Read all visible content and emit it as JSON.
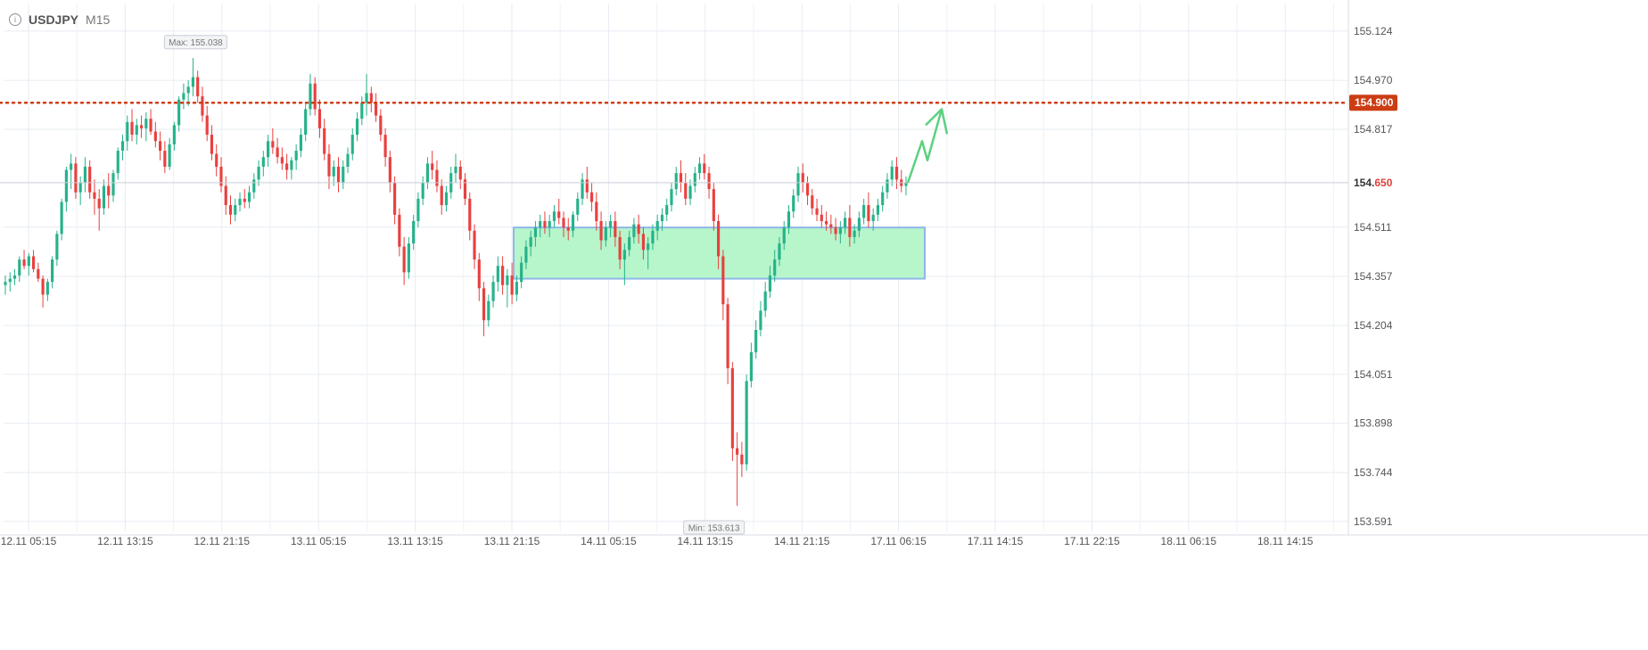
{
  "header": {
    "symbol": "USDJPY",
    "timeframe": "M15",
    "info_icon": "info-icon"
  },
  "chart_data": {
    "type": "candlestick",
    "symbol": "USDJPY",
    "timeframe": "M15",
    "y_ticks": [
      "155.124",
      "154.970",
      "154.817",
      "154.511",
      "154.357",
      "154.204",
      "154.051",
      "153.898",
      "153.744",
      "153.591"
    ],
    "ylim": [
      153.56,
      155.21
    ],
    "x_ticks": [
      "12.11 05:15",
      "12.11 13:15",
      "12.11 21:15",
      "13.11 05:15",
      "13.11 13:15",
      "13.11 21:15",
      "14.11 05:15",
      "14.11 13:15",
      "14.11 21:15",
      "17.11 06:15",
      "17.11 14:15",
      "17.11 22:15",
      "18.11 06:15",
      "18.11 14:15"
    ],
    "max_label": "Max: 155.038",
    "min_label": "Min: 153.613",
    "resistance_level": {
      "value": 154.9,
      "label": "154.900",
      "color": "#cc3d14"
    },
    "current_price": {
      "value": 154.65,
      "label_prefix": "154.",
      "label_suffix": "650",
      "suffix_color": "#e0403a"
    },
    "zone": {
      "top": 154.51,
      "bottom": 154.35,
      "fill": "#b7f5cb",
      "stroke": "#8fb8e8"
    },
    "up_color": "#26b28a",
    "down_color": "#e8403f",
    "projection_color": "#5ad17f",
    "candles": [
      [
        154.33,
        154.36,
        154.3,
        154.34
      ],
      [
        154.34,
        154.37,
        154.31,
        154.35
      ],
      [
        154.35,
        154.38,
        154.33,
        154.36
      ],
      [
        154.36,
        154.42,
        154.34,
        154.41
      ],
      [
        154.41,
        154.44,
        154.38,
        154.39
      ],
      [
        154.39,
        154.43,
        154.36,
        154.42
      ],
      [
        154.42,
        154.44,
        154.37,
        154.38
      ],
      [
        154.38,
        154.4,
        154.34,
        154.35
      ],
      [
        154.35,
        154.36,
        154.26,
        154.3
      ],
      [
        154.3,
        154.35,
        154.28,
        154.34
      ],
      [
        154.34,
        154.42,
        154.32,
        154.41
      ],
      [
        154.41,
        154.5,
        154.39,
        154.49
      ],
      [
        154.49,
        154.6,
        154.47,
        154.59
      ],
      [
        154.59,
        154.7,
        154.56,
        154.69
      ],
      [
        154.69,
        154.74,
        154.63,
        154.71
      ],
      [
        154.71,
        154.73,
        154.6,
        154.62
      ],
      [
        154.62,
        154.67,
        154.58,
        154.65
      ],
      [
        154.65,
        154.73,
        154.62,
        154.7
      ],
      [
        154.7,
        154.72,
        154.6,
        154.62
      ],
      [
        154.62,
        154.66,
        154.55,
        154.6
      ],
      [
        154.6,
        154.63,
        154.5,
        154.57
      ],
      [
        154.57,
        154.66,
        154.55,
        154.64
      ],
      [
        154.64,
        154.68,
        154.57,
        154.61
      ],
      [
        154.61,
        154.69,
        154.59,
        154.68
      ],
      [
        154.68,
        154.76,
        154.66,
        154.75
      ],
      [
        154.75,
        154.8,
        154.72,
        154.78
      ],
      [
        154.78,
        154.86,
        154.75,
        154.84
      ],
      [
        154.84,
        154.88,
        154.78,
        154.8
      ],
      [
        154.8,
        154.85,
        154.77,
        154.83
      ],
      [
        154.83,
        154.86,
        154.79,
        154.82
      ],
      [
        154.82,
        154.87,
        154.78,
        154.85
      ],
      [
        154.85,
        154.88,
        154.8,
        154.81
      ],
      [
        154.81,
        154.84,
        154.76,
        154.78
      ],
      [
        154.78,
        154.81,
        154.72,
        154.75
      ],
      [
        154.75,
        154.78,
        154.68,
        154.7
      ],
      [
        154.7,
        154.79,
        154.69,
        154.77
      ],
      [
        154.77,
        154.84,
        154.75,
        154.83
      ],
      [
        154.83,
        154.92,
        154.81,
        154.91
      ],
      [
        154.91,
        154.96,
        154.88,
        154.93
      ],
      [
        154.93,
        154.97,
        154.89,
        154.95
      ],
      [
        154.95,
        155.04,
        154.92,
        154.98
      ],
      [
        154.98,
        155.0,
        154.9,
        154.92
      ],
      [
        154.92,
        154.95,
        154.84,
        154.86
      ],
      [
        154.86,
        154.89,
        154.78,
        154.8
      ],
      [
        154.8,
        154.83,
        154.72,
        154.74
      ],
      [
        154.74,
        154.77,
        154.67,
        154.7
      ],
      [
        154.7,
        154.73,
        154.62,
        154.64
      ],
      [
        154.64,
        154.67,
        154.55,
        154.58
      ],
      [
        154.58,
        154.61,
        154.52,
        154.55
      ],
      [
        154.55,
        154.6,
        154.53,
        154.58
      ],
      [
        154.58,
        154.62,
        154.56,
        154.6
      ],
      [
        154.6,
        154.63,
        154.57,
        154.59
      ],
      [
        154.59,
        154.64,
        154.57,
        154.62
      ],
      [
        154.62,
        154.68,
        154.6,
        154.66
      ],
      [
        154.66,
        154.72,
        154.64,
        154.7
      ],
      [
        154.7,
        154.75,
        154.67,
        154.73
      ],
      [
        154.73,
        154.8,
        154.7,
        154.78
      ],
      [
        154.78,
        154.82,
        154.74,
        154.76
      ],
      [
        154.76,
        154.79,
        154.71,
        154.73
      ],
      [
        154.73,
        154.76,
        154.69,
        154.71
      ],
      [
        154.71,
        154.74,
        154.66,
        154.69
      ],
      [
        154.69,
        154.73,
        154.66,
        154.72
      ],
      [
        154.72,
        154.77,
        154.69,
        154.75
      ],
      [
        154.75,
        154.82,
        154.73,
        154.8
      ],
      [
        154.8,
        154.9,
        154.78,
        154.88
      ],
      [
        154.88,
        154.99,
        154.86,
        154.96
      ],
      [
        154.96,
        154.98,
        154.86,
        154.88
      ],
      [
        154.88,
        154.91,
        154.79,
        154.82
      ],
      [
        154.82,
        154.85,
        154.72,
        154.74
      ],
      [
        154.74,
        154.77,
        154.63,
        154.67
      ],
      [
        154.67,
        154.72,
        154.64,
        154.7
      ],
      [
        154.7,
        154.73,
        154.62,
        154.65
      ],
      [
        154.65,
        154.72,
        154.63,
        154.7
      ],
      [
        154.7,
        154.76,
        154.68,
        154.74
      ],
      [
        154.74,
        154.82,
        154.72,
        154.8
      ],
      [
        154.8,
        154.87,
        154.78,
        154.85
      ],
      [
        154.85,
        154.92,
        154.83,
        154.9
      ],
      [
        154.9,
        154.99,
        154.86,
        154.93
      ],
      [
        154.93,
        154.95,
        154.87,
        154.9
      ],
      [
        154.9,
        154.93,
        154.84,
        154.86
      ],
      [
        154.86,
        154.88,
        154.78,
        154.8
      ],
      [
        154.8,
        154.82,
        154.7,
        154.73
      ],
      [
        154.73,
        154.75,
        154.62,
        154.65
      ],
      [
        154.65,
        154.67,
        154.52,
        154.55
      ],
      [
        154.55,
        154.57,
        154.42,
        154.45
      ],
      [
        154.45,
        154.48,
        154.33,
        154.37
      ],
      [
        154.37,
        154.48,
        154.35,
        154.46
      ],
      [
        154.46,
        154.55,
        154.44,
        154.53
      ],
      [
        154.53,
        154.62,
        154.51,
        154.6
      ],
      [
        154.6,
        154.67,
        154.58,
        154.65
      ],
      [
        154.65,
        154.73,
        154.63,
        154.71
      ],
      [
        154.71,
        154.75,
        154.66,
        154.69
      ],
      [
        154.69,
        154.72,
        154.62,
        154.64
      ],
      [
        154.64,
        154.66,
        154.55,
        154.58
      ],
      [
        154.58,
        154.64,
        154.56,
        154.62
      ],
      [
        154.62,
        154.7,
        154.6,
        154.68
      ],
      [
        154.68,
        154.74,
        154.65,
        154.7
      ],
      [
        154.7,
        154.72,
        154.63,
        154.66
      ],
      [
        154.66,
        154.68,
        154.58,
        154.6
      ],
      [
        154.6,
        154.62,
        154.47,
        154.5
      ],
      [
        154.5,
        154.52,
        154.38,
        154.41
      ],
      [
        154.41,
        154.43,
        154.28,
        154.32
      ],
      [
        154.32,
        154.34,
        154.17,
        154.22
      ],
      [
        154.22,
        154.3,
        154.2,
        154.28
      ],
      [
        154.28,
        154.36,
        154.26,
        154.34
      ],
      [
        154.34,
        154.42,
        154.31,
        154.39
      ],
      [
        154.39,
        154.42,
        154.3,
        154.33
      ],
      [
        154.33,
        154.38,
        154.26,
        154.36
      ],
      [
        154.36,
        154.4,
        154.27,
        154.3
      ],
      [
        154.3,
        154.36,
        154.28,
        154.34
      ],
      [
        154.34,
        154.42,
        154.32,
        154.4
      ],
      [
        154.4,
        154.47,
        154.38,
        154.45
      ],
      [
        154.45,
        154.5,
        154.42,
        154.48
      ],
      [
        154.48,
        154.53,
        154.45,
        154.51
      ],
      [
        154.51,
        154.55,
        154.48,
        154.53
      ],
      [
        154.53,
        154.56,
        154.49,
        154.51
      ],
      [
        154.51,
        154.55,
        154.48,
        154.53
      ],
      [
        154.53,
        154.58,
        154.51,
        154.56
      ],
      [
        154.56,
        154.6,
        154.52,
        154.54
      ],
      [
        154.54,
        154.56,
        154.48,
        154.51
      ],
      [
        154.51,
        154.54,
        154.47,
        154.5
      ],
      [
        154.5,
        154.56,
        154.48,
        154.55
      ],
      [
        154.55,
        154.62,
        154.53,
        154.6
      ],
      [
        154.6,
        154.68,
        154.58,
        154.66
      ],
      [
        154.66,
        154.7,
        154.6,
        154.62
      ],
      [
        154.62,
        154.65,
        154.56,
        154.59
      ],
      [
        154.59,
        154.62,
        154.5,
        154.53
      ],
      [
        154.53,
        154.56,
        154.44,
        154.47
      ],
      [
        154.47,
        154.53,
        154.45,
        154.51
      ],
      [
        154.51,
        154.55,
        154.48,
        154.53
      ],
      [
        154.53,
        154.56,
        154.45,
        154.48
      ],
      [
        154.48,
        154.5,
        154.38,
        154.41
      ],
      [
        154.41,
        154.46,
        154.33,
        154.44
      ],
      [
        154.44,
        154.5,
        154.42,
        154.48
      ],
      [
        154.48,
        154.54,
        154.46,
        154.52
      ],
      [
        154.52,
        154.55,
        154.46,
        154.49
      ],
      [
        154.49,
        154.51,
        154.41,
        154.44
      ],
      [
        154.44,
        154.48,
        154.38,
        154.46
      ],
      [
        154.46,
        154.52,
        154.44,
        154.5
      ],
      [
        154.5,
        154.55,
        154.47,
        154.53
      ],
      [
        154.53,
        154.57,
        154.5,
        154.55
      ],
      [
        154.55,
        154.6,
        154.53,
        154.58
      ],
      [
        154.58,
        154.65,
        154.56,
        154.63
      ],
      [
        154.63,
        154.7,
        154.61,
        154.68
      ],
      [
        154.68,
        154.72,
        154.62,
        154.65
      ],
      [
        154.65,
        154.68,
        154.58,
        154.6
      ],
      [
        154.6,
        154.66,
        154.58,
        154.64
      ],
      [
        154.64,
        154.7,
        154.62,
        154.68
      ],
      [
        154.68,
        154.73,
        154.66,
        154.71
      ],
      [
        154.71,
        154.74,
        154.66,
        154.68
      ],
      [
        154.68,
        154.7,
        154.6,
        154.63
      ],
      [
        154.63,
        154.65,
        154.5,
        154.53
      ],
      [
        154.53,
        154.55,
        154.38,
        154.42
      ],
      [
        154.42,
        154.44,
        154.22,
        154.27
      ],
      [
        154.27,
        154.29,
        154.02,
        154.07
      ],
      [
        154.07,
        154.09,
        153.78,
        153.82
      ],
      [
        153.82,
        153.87,
        153.64,
        153.8
      ],
      [
        153.8,
        153.84,
        153.73,
        153.77
      ],
      [
        153.77,
        154.05,
        153.75,
        154.03
      ],
      [
        154.03,
        154.15,
        154.01,
        154.12
      ],
      [
        154.12,
        154.22,
        154.1,
        154.19
      ],
      [
        154.19,
        154.28,
        154.17,
        154.25
      ],
      [
        154.25,
        154.34,
        154.23,
        154.31
      ],
      [
        154.31,
        154.39,
        154.29,
        154.36
      ],
      [
        154.36,
        154.44,
        154.34,
        154.41
      ],
      [
        154.41,
        154.48,
        154.39,
        154.46
      ],
      [
        154.46,
        154.53,
        154.44,
        154.51
      ],
      [
        154.51,
        154.58,
        154.49,
        154.56
      ],
      [
        154.56,
        154.63,
        154.54,
        154.61
      ],
      [
        154.61,
        154.7,
        154.59,
        154.68
      ],
      [
        154.68,
        154.71,
        154.62,
        154.65
      ],
      [
        154.65,
        154.67,
        154.58,
        154.61
      ],
      [
        154.61,
        154.63,
        154.55,
        154.57
      ],
      [
        154.57,
        154.6,
        154.53,
        154.55
      ],
      [
        154.55,
        154.58,
        154.51,
        154.53
      ],
      [
        154.53,
        154.56,
        154.5,
        154.52
      ],
      [
        154.52,
        154.55,
        154.49,
        154.51
      ],
      [
        154.51,
        154.54,
        154.47,
        154.49
      ],
      [
        154.49,
        154.53,
        154.46,
        154.51
      ],
      [
        154.51,
        154.56,
        154.49,
        154.54
      ],
      [
        154.54,
        154.58,
        154.45,
        154.48
      ],
      [
        154.48,
        154.52,
        154.46,
        154.5
      ],
      [
        154.5,
        154.56,
        154.48,
        154.54
      ],
      [
        154.54,
        154.6,
        154.52,
        154.58
      ],
      [
        154.58,
        154.62,
        154.51,
        154.53
      ],
      [
        154.53,
        154.57,
        154.5,
        154.55
      ],
      [
        154.55,
        154.6,
        154.53,
        154.58
      ],
      [
        154.58,
        154.64,
        154.56,
        154.62
      ],
      [
        154.62,
        154.68,
        154.6,
        154.66
      ],
      [
        154.66,
        154.72,
        154.64,
        154.7
      ],
      [
        154.7,
        154.73,
        154.63,
        154.66
      ],
      [
        154.66,
        154.69,
        154.62,
        154.64
      ],
      [
        154.64,
        154.67,
        154.61,
        154.65
      ]
    ]
  }
}
